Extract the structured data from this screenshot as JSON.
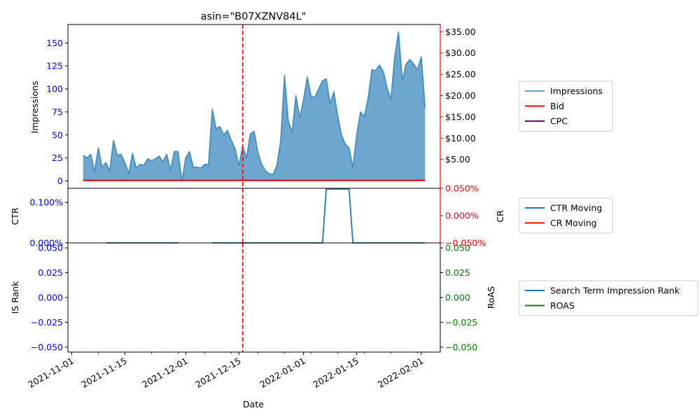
{
  "title": "asin=\"B07XZNV84L\"",
  "colors": {
    "impressions": "#1f77b4",
    "bid": "#ff0000",
    "cpc": "#800080",
    "ctr": "#1f77b4",
    "cr": "#ff0000",
    "is_rank": "#1f77b4",
    "roas": "#008000",
    "event_line": "#ff0000",
    "left_ticks_top": "#0000ff",
    "right_ticks_top": "#ff0000",
    "right_ticks_bottom": "#008000"
  },
  "chart_data": [
    {
      "type": "area",
      "panel": "top",
      "title": "asin=\"B07XZNV84L\"",
      "ylabel": "Impressions",
      "ylim": [
        -8,
        170
      ],
      "yticks": [
        0,
        25,
        50,
        75,
        100,
        125,
        150
      ],
      "ylim_right": [
        -1.8,
        36.7
      ],
      "yticks_right": [
        "$5.00",
        "$10.00",
        "$15.00",
        "$20.00",
        "$25.00",
        "$30.00",
        "$35.00"
      ],
      "yticks_right_values": [
        5,
        10,
        15,
        20,
        25,
        30,
        35
      ],
      "x_start": "2021-11-04",
      "event_date": "2021-12-16",
      "series": [
        {
          "name": "Impressions",
          "axis": "left",
          "values": [
            28,
            25,
            29,
            10,
            36,
            15,
            20,
            11,
            44,
            28,
            29,
            20,
            8,
            30,
            14,
            18,
            17,
            24,
            22,
            24,
            27,
            21,
            29,
            12,
            32,
            32,
            0,
            25,
            32,
            15,
            15,
            14,
            18,
            18,
            78,
            57,
            59,
            50,
            55,
            44,
            35,
            17,
            38,
            25,
            51,
            54,
            31,
            18,
            11,
            8,
            7,
            17,
            44,
            115,
            65,
            53,
            93,
            69,
            88,
            113,
            92,
            91,
            100,
            109,
            111,
            84,
            97,
            71,
            50,
            40,
            36,
            15,
            50,
            75,
            70,
            90,
            121,
            120,
            126,
            119,
            101,
            89,
            135,
            162,
            109,
            127,
            132,
            127,
            121,
            135,
            80
          ]
        },
        {
          "name": "Bid",
          "axis": "right",
          "constant": 0.0
        },
        {
          "name": "CPC",
          "axis": "right",
          "constant": 0.0
        }
      ]
    },
    {
      "type": "line",
      "panel": "middle",
      "ylabel": "CTR",
      "ylabel_right": "CR",
      "ylim": [
        0,
        0.135
      ],
      "yticks": [
        "0.000%",
        "0.100%"
      ],
      "yticks_values": [
        0,
        0.1
      ],
      "ylim_right": [
        -0.05,
        0.05
      ],
      "yticks_right": [
        "−0.050%",
        "0.000%",
        "0.050%"
      ],
      "yticks_right_values": [
        -0.05,
        0,
        0.05
      ],
      "series": [
        {
          "name": "CTR Moving",
          "points": [
            [
              "2021-11-10",
              0
            ],
            [
              "2021-11-29",
              0
            ],
            null,
            [
              "2021-12-08",
              0
            ],
            [
              "2022-01-06",
              0
            ],
            [
              "2022-01-07",
              0.133
            ],
            [
              "2022-01-13",
              0.133
            ],
            [
              "2022-01-14",
              0
            ],
            [
              "2022-02-02",
              0
            ]
          ]
        },
        {
          "name": "CR Moving",
          "points": []
        }
      ]
    },
    {
      "type": "line",
      "panel": "bottom",
      "ylabel": "IS Rank",
      "ylabel_right": "RoAS",
      "xlabel": "Date",
      "ylim": [
        -0.055,
        0.055
      ],
      "yticks": [
        "−0.050",
        "−0.025",
        "0.000",
        "0.025",
        "0.050"
      ],
      "yticks_values": [
        -0.05,
        -0.025,
        0,
        0.025,
        0.05
      ],
      "yticks_right": [
        "−0.050",
        "−0.025",
        "0.000",
        "0.025",
        "0.050"
      ],
      "xlim": [
        "2021-10-31",
        "2022-02-06"
      ],
      "xticks": [
        "2021-11-01",
        "2021-11-15",
        "2021-12-01",
        "2021-12-15",
        "2022-01-01",
        "2022-01-15",
        "2022-02-01"
      ],
      "series": [
        {
          "name": "Search Term Impression Rank",
          "points": []
        },
        {
          "name": "ROAS",
          "points": []
        }
      ]
    }
  ],
  "legends": {
    "top": [
      {
        "label": "Impressions",
        "style": "line-light"
      },
      {
        "label": "Bid",
        "style": "bid"
      },
      {
        "label": "CPC",
        "style": "cpc"
      }
    ],
    "middle": [
      {
        "label": "CTR Moving",
        "style": "ctr"
      },
      {
        "label": "CR Moving",
        "style": "cr"
      }
    ],
    "bottom": [
      {
        "label": "Search Term Impression Rank",
        "style": "is_rank"
      },
      {
        "label": "ROAS",
        "style": "roas"
      }
    ]
  }
}
